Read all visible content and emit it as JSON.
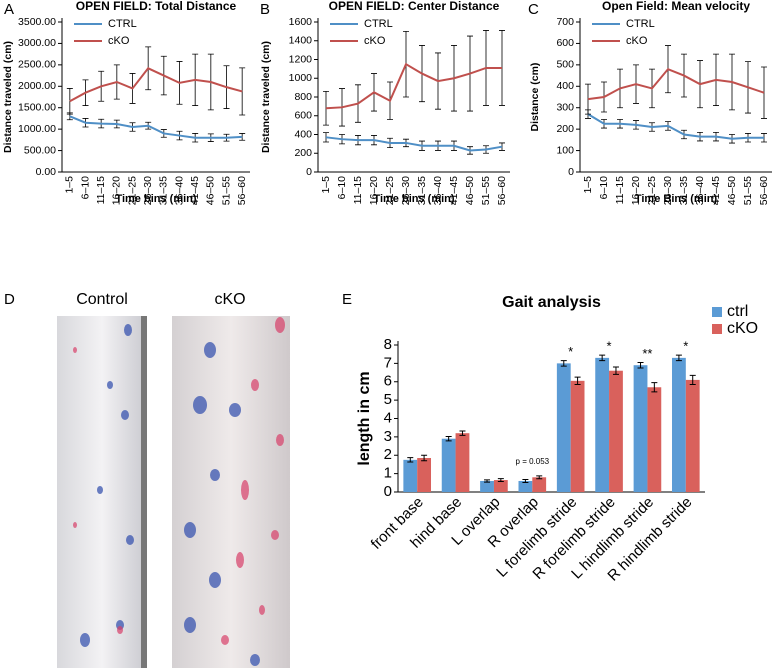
{
  "chart_data": [
    {
      "type": "line",
      "panel_label": "A",
      "title": "OPEN FIELD: Total Distance",
      "y_label": "Distance traveled (cm)",
      "x_label": "Time bins (min)",
      "categories": [
        "1–5",
        "6–10",
        "11–15",
        "16–20",
        "21–25",
        "26–30",
        "31–35",
        "36–40",
        "41–45",
        "46–50",
        "51–55",
        "56–60"
      ],
      "series": [
        {
          "name": "CTRL",
          "color": "#4f8fc6",
          "values": [
            1300,
            1150,
            1130,
            1120,
            1050,
            1080,
            900,
            850,
            800,
            800,
            800,
            820
          ],
          "errors": [
            80,
            100,
            100,
            90,
            100,
            80,
            90,
            100,
            100,
            90,
            80,
            80
          ]
        },
        {
          "name": "cKO",
          "color": "#c0504d",
          "values": [
            1650,
            1850,
            2000,
            2100,
            1950,
            2420,
            2250,
            2080,
            2150,
            2100,
            1980,
            1880
          ],
          "errors": [
            300,
            300,
            350,
            400,
            350,
            500,
            450,
            500,
            600,
            650,
            500,
            550
          ]
        }
      ],
      "ylim": [
        0,
        3500
      ],
      "yticks": [
        {
          "value": 0,
          "label": "0.00"
        },
        {
          "value": 500,
          "label": "500.00"
        },
        {
          "value": 1000,
          "label": "1000.00"
        },
        {
          "value": 1500,
          "label": "1500.00"
        },
        {
          "value": 2000,
          "label": "2000.00"
        },
        {
          "value": 2500,
          "label": "2500.00"
        },
        {
          "value": 3000,
          "label": "3000.00"
        },
        {
          "value": 3500,
          "label": "3500.00"
        }
      ],
      "legend": "top-left"
    },
    {
      "type": "line",
      "panel_label": "B",
      "title": "OPEN FIELD: Center Distance",
      "y_label": "Distance traveled (cm)",
      "x_label": "Time bins (min)",
      "categories": [
        "1–5",
        "6–10",
        "11–15",
        "16–20",
        "21–25",
        "26–30",
        "31–35",
        "36–40",
        "41–45",
        "46–50",
        "51–55",
        "56–60"
      ],
      "series": [
        {
          "name": "CTRL",
          "color": "#4f8fc6",
          "values": [
            370,
            350,
            340,
            340,
            310,
            310,
            280,
            280,
            280,
            230,
            240,
            270
          ],
          "errors": [
            50,
            50,
            50,
            50,
            50,
            40,
            50,
            50,
            50,
            40,
            40,
            40
          ]
        },
        {
          "name": "cKO",
          "color": "#c0504d",
          "values": [
            680,
            690,
            730,
            850,
            760,
            1150,
            1050,
            970,
            1000,
            1050,
            1110,
            1110
          ],
          "errors": [
            180,
            200,
            200,
            200,
            200,
            350,
            300,
            300,
            350,
            400,
            400,
            400
          ]
        }
      ],
      "ylim": [
        0,
        1600
      ],
      "yticks": [
        0,
        200,
        400,
        600,
        800,
        1000,
        1200,
        1400,
        1600
      ],
      "legend": "top-left"
    },
    {
      "type": "line",
      "panel_label": "C",
      "title": "Open Field: Mean velocity",
      "y_label": "Distance (cm)",
      "x_label": "Time Bins (min)",
      "categories": [
        "1–5",
        "6–10",
        "11–15",
        "16–20",
        "21–25",
        "26–30",
        "31–35",
        "36–40",
        "41–45",
        "46–50",
        "51–55",
        "56–60"
      ],
      "series": [
        {
          "name": "CTRL",
          "color": "#4f8fc6",
          "values": [
            270,
            225,
            225,
            220,
            210,
            215,
            175,
            165,
            165,
            155,
            160,
            160
          ],
          "errors": [
            20,
            20,
            20,
            20,
            20,
            20,
            20,
            20,
            20,
            20,
            20,
            20
          ]
        },
        {
          "name": "cKO",
          "color": "#c0504d",
          "values": [
            340,
            350,
            390,
            410,
            390,
            480,
            450,
            410,
            430,
            420,
            395,
            370
          ],
          "errors": [
            70,
            70,
            90,
            90,
            90,
            110,
            100,
            110,
            120,
            130,
            120,
            120
          ]
        }
      ],
      "ylim": [
        0,
        700
      ],
      "yticks": [
        0,
        100,
        200,
        300,
        400,
        500,
        600,
        700
      ],
      "legend": "top-left"
    },
    {
      "type": "bar",
      "panel_label": "E",
      "title": "Gait analysis",
      "y_label": "length in cm",
      "categories": [
        "front base",
        "hind base",
        "L overlap",
        "R overlap",
        "L forelimb stride",
        "R forelimb stride",
        "L hindlimb stride",
        "R hindlimb stride"
      ],
      "series": [
        {
          "name": "ctrl",
          "color": "#5b9bd5",
          "values": [
            1.75,
            2.9,
            0.6,
            0.6,
            7.0,
            7.3,
            6.9,
            7.3
          ],
          "errors": [
            0.12,
            0.12,
            0.06,
            0.08,
            0.15,
            0.15,
            0.15,
            0.15
          ]
        },
        {
          "name": "cKO",
          "color": "#d9615c",
          "values": [
            1.85,
            3.2,
            0.65,
            0.8,
            6.05,
            6.6,
            5.7,
            6.1
          ],
          "errors": [
            0.15,
            0.12,
            0.08,
            0.08,
            0.2,
            0.2,
            0.25,
            0.25
          ]
        }
      ],
      "ylim": [
        0,
        8
      ],
      "yticks": [
        0,
        1,
        2,
        3,
        4,
        5,
        6,
        7,
        8
      ],
      "legend": "top-right",
      "annotations": [
        {
          "category": "R overlap",
          "text": "p = 0.053"
        },
        {
          "category": "L forelimb stride",
          "text": "*"
        },
        {
          "category": "R forelimb stride",
          "text": "*"
        },
        {
          "category": "L hindlimb stride",
          "text": "**"
        },
        {
          "category": "R hindlimb stride",
          "text": "*"
        }
      ]
    }
  ],
  "photo": {
    "panel_label": "D",
    "labels": [
      "Control",
      "cKO"
    ]
  }
}
